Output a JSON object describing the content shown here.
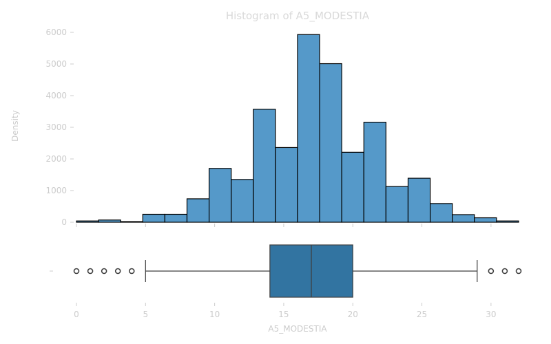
{
  "chart_data": [
    {
      "type": "bar",
      "title": "Histogram of A5_MODESTIA",
      "xlabel": "",
      "ylabel": "Density",
      "ylim": [
        0,
        6000
      ],
      "yticks": [
        0,
        1000,
        2000,
        3000,
        4000,
        5000,
        6000
      ],
      "bin_edges": [
        0,
        1.6,
        3.2,
        4.8,
        6.4,
        8.0,
        9.6,
        11.2,
        12.8,
        14.4,
        16.0,
        17.6,
        19.2,
        20.8,
        22.4,
        24.0,
        25.6,
        27.2,
        28.8,
        30.4,
        32.0
      ],
      "values": [
        40,
        70,
        20,
        250,
        250,
        740,
        1700,
        1350,
        3570,
        2360,
        5930,
        5010,
        2210,
        3160,
        1130,
        1390,
        590,
        240,
        140,
        40
      ],
      "colors": {
        "bar": "#5599c9",
        "edge": "#000000"
      }
    },
    {
      "type": "box",
      "xlabel": "A5_MODESTIA",
      "ylabel": "",
      "xlim": [
        0,
        32
      ],
      "xticks": [
        0,
        5,
        10,
        15,
        20,
        25,
        30
      ],
      "ytick_labels": [
        "–"
      ],
      "whisker_low": 5,
      "q1": 14,
      "median": 17,
      "q3": 20,
      "whisker_high": 29,
      "outliers": [
        0,
        1,
        2,
        3,
        4,
        30,
        31,
        32
      ],
      "colors": {
        "box": "#3274a1",
        "line": "#3f3f3f"
      }
    }
  ]
}
